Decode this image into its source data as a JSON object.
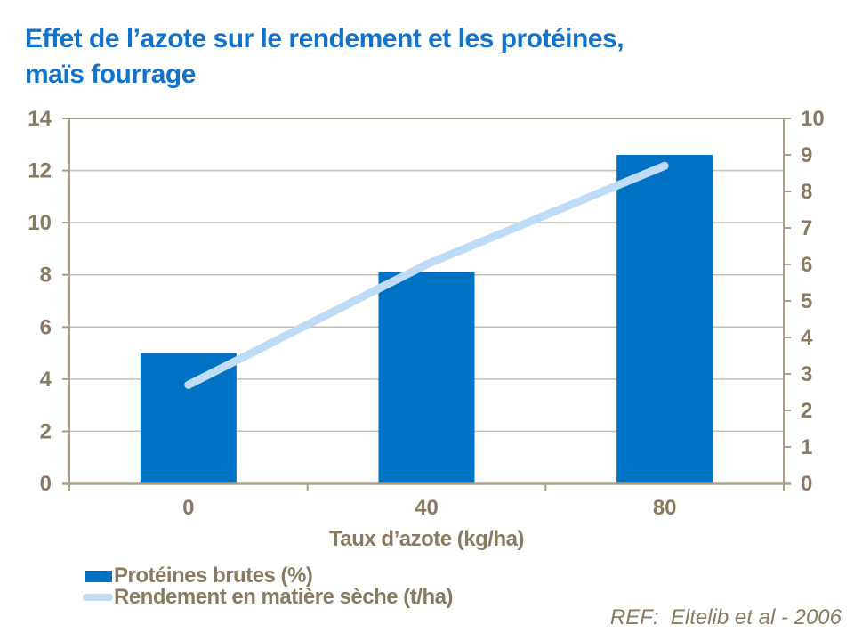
{
  "header": {
    "title_lines": [
      "Effet de l’azote sur le rendement et les protéines,",
      "maïs fourrage"
    ]
  },
  "chart_data": {
    "type": "bar+line",
    "categories": [
      "0",
      "40",
      "80"
    ],
    "series": [
      {
        "name": "Protéines brutes (%)",
        "type": "bar",
        "axis": "left",
        "values": [
          5.0,
          8.1,
          12.6
        ],
        "color": "#0072c3"
      },
      {
        "name": "Rendement en matière sèche (t/ha)",
        "type": "line",
        "axis": "right",
        "values": [
          2.7,
          6.0,
          8.7
        ],
        "color": "#bedcf5"
      }
    ],
    "xlabel": "Taux d’azote (kg/ha)",
    "left_axis": {
      "min": 0,
      "max": 14,
      "step": 2
    },
    "right_axis": {
      "min": 0,
      "max": 10,
      "step": 1
    },
    "grid": true,
    "legend_position": "bottom-left"
  },
  "footer": {
    "ref": "REF:  Eltelib et al - 2006"
  },
  "colors": {
    "title": "#1173cb",
    "bar": "#0072c3",
    "line": "#bedcf5",
    "axis_text": "#8b7a62",
    "gridline": "#c8beb1",
    "axis_line": "#a89d8b"
  }
}
